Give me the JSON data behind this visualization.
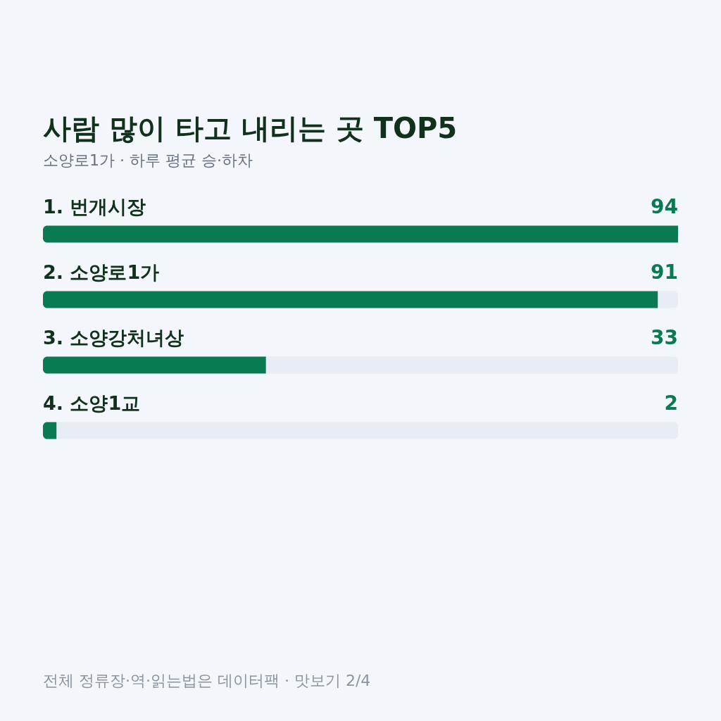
{
  "chart_data": {
    "type": "bar",
    "orientation": "horizontal",
    "title": "사람 많이 타고 내리는 곳 TOP5",
    "subtitle": "소양로1가 · 하루 평균 승·하차",
    "categories": [
      "1. 번개시장",
      "2. 소양로1가",
      "3. 소양강처녀상",
      "4. 소양1교"
    ],
    "values": [
      94,
      91,
      33,
      2
    ],
    "color": "#0a7a52",
    "xlim": [
      0,
      94
    ],
    "data_labels": true,
    "tick_labels": "y",
    "annotations": [
      "전체 정류장·역·읽는법은 데이터팩 · 맛보기 2/4"
    ]
  }
}
